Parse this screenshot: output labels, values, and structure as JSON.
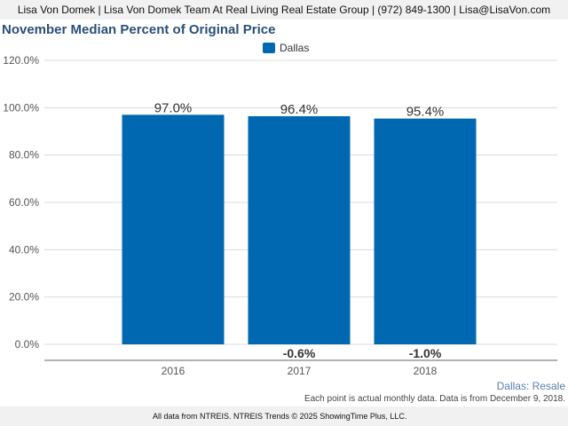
{
  "header": {
    "contact": "Lisa Von Domek | Lisa Von Domek Team At Real Living Real Estate Group | (972) 849-1300 | Lisa@LisaVon.com"
  },
  "footer": {
    "region": "Dallas: Resale",
    "note": "Each point is actual monthly data. Data is from December 9, 2018.",
    "source": "All data from NTREIS. NTREIS Trends © 2025 ShowingTime Plus, LLC."
  },
  "chart_data": {
    "type": "bar",
    "title": "November Median Percent of Original Price",
    "categories": [
      "2016",
      "2017",
      "2018"
    ],
    "series": [
      {
        "name": "Dallas",
        "values": [
          97.0,
          96.4,
          95.4
        ],
        "value_labels": [
          "97.0%",
          "96.4%",
          "95.4%"
        ],
        "color": "#0068b0"
      }
    ],
    "change_labels": [
      "",
      "-0.6%",
      "-1.0%"
    ],
    "ylim": [
      0,
      120
    ],
    "yticks": [
      0,
      20,
      40,
      60,
      80,
      100,
      120
    ],
    "ytick_labels": [
      "0.0%",
      "20.0%",
      "40.0%",
      "60.0%",
      "80.0%",
      "100.0%",
      "120.0%"
    ],
    "xlabel": "",
    "ylabel": "",
    "grid": true,
    "legend_position": "top-center"
  }
}
